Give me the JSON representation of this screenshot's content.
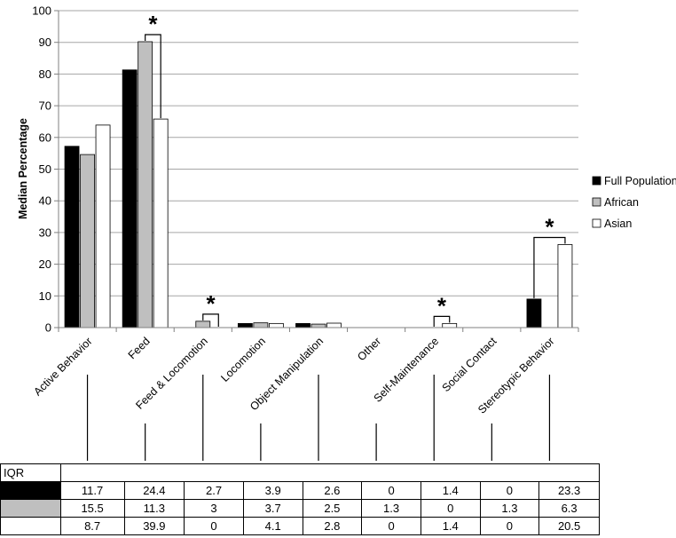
{
  "chart_data": {
    "type": "bar",
    "ylabel": "Median Percentage",
    "xlabel": "",
    "title": "",
    "ylim": [
      0,
      100
    ],
    "yticks": [
      0,
      10,
      20,
      30,
      40,
      50,
      60,
      70,
      80,
      90,
      100
    ],
    "grid": "horizontal",
    "legend_position": "right",
    "categories": [
      "Active Behavior",
      "Feed",
      "Feed & Locomotion",
      "Locomotion",
      "Object Manipulation",
      "Other",
      "Self-Maintenance",
      "Social Contact",
      "Stereotypic Behavior"
    ],
    "series": [
      {
        "name": "Full Population",
        "color": "#000000",
        "values": [
          57.2,
          81.3,
          0,
          1.3,
          1.3,
          0,
          0,
          0,
          9.0
        ]
      },
      {
        "name": "African",
        "color": "#bfbfbf",
        "values": [
          54.6,
          90.2,
          2.0,
          1.5,
          1.1,
          0,
          0,
          0,
          0
        ]
      },
      {
        "name": "Asian",
        "color": "#ffffff",
        "values": [
          63.9,
          65.8,
          0,
          1.3,
          1.4,
          0,
          1.3,
          0,
          26.2
        ]
      }
    ],
    "significance_marker": "*",
    "significance": [
      {
        "category": "Feed",
        "between": [
          "African",
          "Asian"
        ]
      },
      {
        "category": "Feed & Locomotion",
        "between": [
          "African",
          "Asian"
        ]
      },
      {
        "category": "Self-Maintenance",
        "between": [
          "African",
          "Asian"
        ]
      },
      {
        "category": "Stereotypic Behavior",
        "between": [
          "Full Population",
          "Asian"
        ]
      }
    ]
  },
  "iqr_table": {
    "header": "IQR",
    "rows": [
      {
        "swatch": "#000000",
        "values": [
          "11.7",
          "24.4",
          "2.7",
          "3.9",
          "2.6",
          "0",
          "1.4",
          "0",
          "23.3"
        ]
      },
      {
        "swatch": "#bfbfbf",
        "values": [
          "15.5",
          "11.3",
          "3",
          "3.7",
          "2.5",
          "1.3",
          "0",
          "1.3",
          "6.3"
        ]
      },
      {
        "swatch": "#ffffff",
        "values": [
          "8.7",
          "39.9",
          "0",
          "4.1",
          "2.8",
          "0",
          "1.4",
          "0",
          "20.5"
        ]
      }
    ]
  }
}
